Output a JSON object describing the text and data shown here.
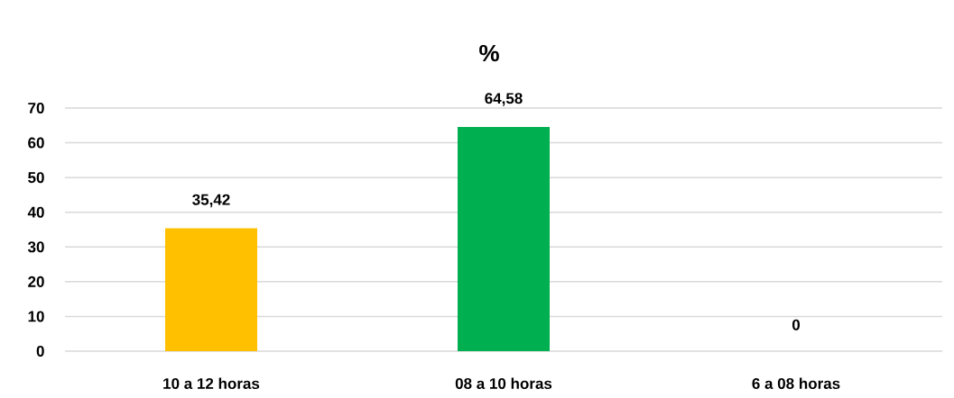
{
  "chart_data": {
    "type": "bar",
    "title": "%",
    "categories": [
      "10 a 12 horas",
      "08 a 10 horas",
      "6 a 08 horas"
    ],
    "values": [
      35.42,
      64.58,
      0
    ],
    "colors": [
      "#ffc000",
      "#00b050",
      "#4472c4"
    ],
    "value_labels": [
      "35,42",
      "64,58",
      "0"
    ],
    "ylim": [
      0,
      70
    ],
    "yticks": [
      0,
      10,
      20,
      30,
      40,
      50,
      60,
      70
    ],
    "grid": "y"
  }
}
